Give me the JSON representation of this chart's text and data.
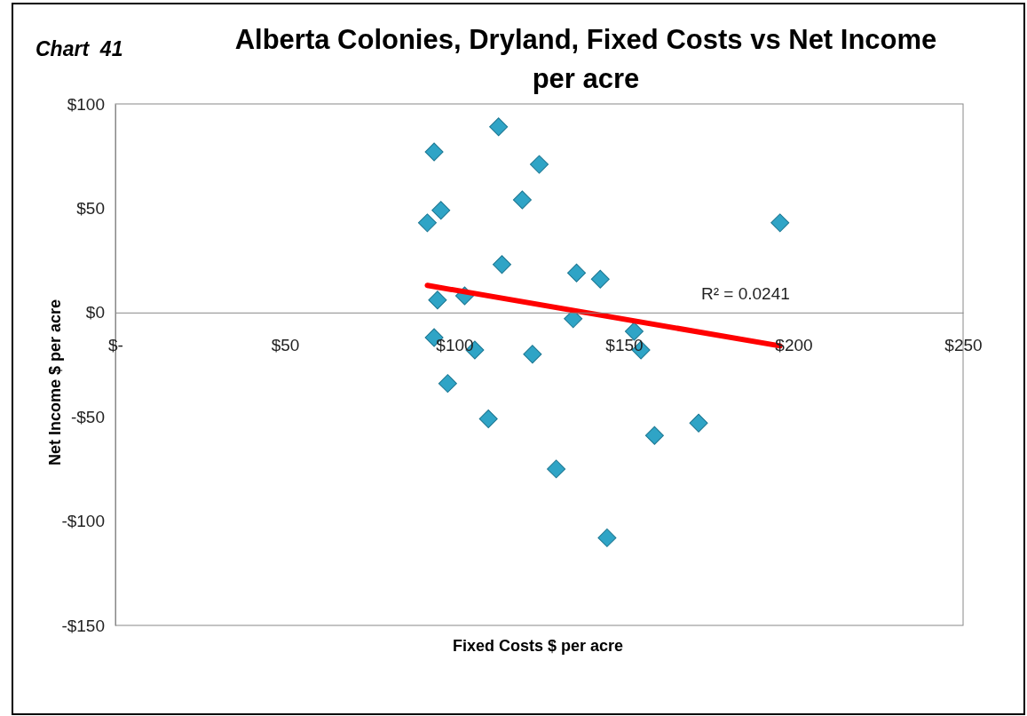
{
  "chart_data": {
    "type": "scatter",
    "title": "Alberta Colonies, Dryland, Fixed Costs vs Net Income per acre",
    "xlabel": "Fixed Costs $ per acre",
    "ylabel": "Net Income $ per acre",
    "annotations": [
      "Chart  41",
      "R² = 0.0241"
    ],
    "grid": false,
    "xlim": [
      0,
      250
    ],
    "xticks": [
      {
        "value": 0,
        "label": "$-"
      },
      {
        "value": 50,
        "label": "$50"
      },
      {
        "value": 100,
        "label": "$100"
      },
      {
        "value": 150,
        "label": "$150"
      },
      {
        "value": 200,
        "label": "$200"
      },
      {
        "value": 250,
        "label": "$250"
      }
    ],
    "ylim": [
      -150,
      100
    ],
    "yticks": [
      {
        "value": -150,
        "label": "-$150"
      },
      {
        "value": -100,
        "label": "-$100"
      },
      {
        "value": -50,
        "label": "-$50"
      },
      {
        "value": 0,
        "label": "$0"
      },
      {
        "value": 50,
        "label": "$50"
      },
      {
        "value": 100,
        "label": "$100"
      }
    ],
    "series": [
      {
        "marker": "diamond",
        "color": "#2fa4c6",
        "x": [
          94,
          113,
          125,
          120,
          96,
          92,
          196,
          114,
          136,
          143,
          95,
          103,
          135,
          153,
          94,
          106,
          123,
          155,
          98,
          110,
          159,
          172,
          130,
          145
        ],
        "values": [
          77,
          89,
          71,
          54,
          49,
          43,
          43,
          23,
          19,
          16,
          6,
          8,
          -3,
          -9,
          -12,
          -18,
          -20,
          -18,
          -34,
          -51,
          -59,
          -53,
          -75,
          -108
        ]
      },
      {
        "type": "line",
        "color": "#ff0000",
        "x": [
          92,
          196
        ],
        "values": [
          13,
          -16
        ]
      }
    ]
  }
}
